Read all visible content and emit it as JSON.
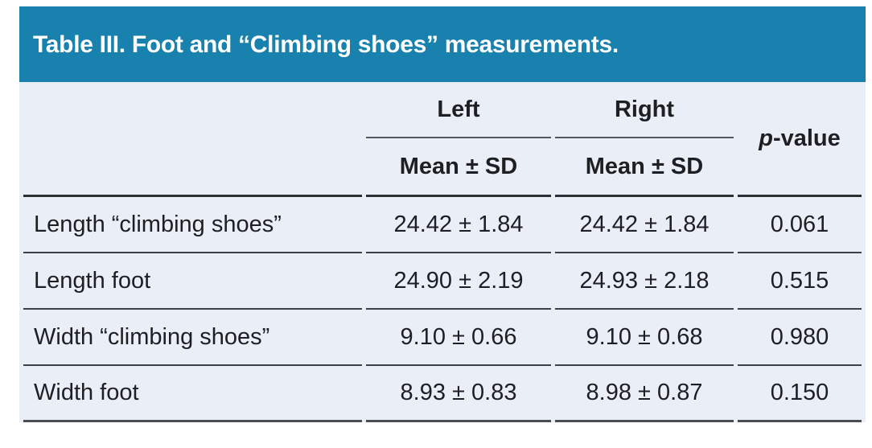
{
  "title": "Table III. Foot and “Climbing shoes” measurements.",
  "header": {
    "group_left": "Left",
    "group_right": "Right",
    "sub_left": "Mean ± SD",
    "sub_right": "Mean ± SD",
    "p_italic": "p",
    "p_rest": "-value"
  },
  "rows": [
    {
      "label": "Length “climbing shoes”",
      "left": "24.42 ± 1.84",
      "right": "24.42 ± 1.84",
      "p": "0.061"
    },
    {
      "label": "Length foot",
      "left": "24.90 ± 2.19",
      "right": "24.93 ± 2.18",
      "p": "0.515"
    },
    {
      "label": "Width “climbing shoes”",
      "left": "9.10 ± 0.66",
      "right": "9.10 ± 0.68",
      "p": "0.980"
    },
    {
      "label": "Width foot",
      "left": "8.93 ± 0.83",
      "right": "8.98 ± 0.87",
      "p": "0.150"
    }
  ],
  "colors": {
    "title_bar_bg": "#1881AE",
    "title_text": "#FFFFFF",
    "table_bg": "#EAEEF7",
    "body_text": "#1E1F22",
    "rule_dark": "#2E2F32",
    "rule_mid": "#3F4044",
    "rule_underline": "#55575C"
  },
  "chart_data": {
    "type": "table",
    "title": "Table III. Foot and “Climbing shoes” measurements.",
    "columns": [
      "",
      "Left Mean ± SD",
      "Right Mean ± SD",
      "p-value"
    ],
    "rows": [
      [
        "Length “climbing shoes”",
        "24.42 ± 1.84",
        "24.42 ± 1.84",
        "0.061"
      ],
      [
        "Length foot",
        "24.90 ± 2.19",
        "24.93 ± 2.18",
        "0.515"
      ],
      [
        "Width “climbing shoes”",
        "9.10 ± 0.66",
        "9.10 ± 0.68",
        "0.980"
      ],
      [
        "Width foot",
        "8.93 ± 0.83",
        "8.98 ± 0.87",
        "0.150"
      ]
    ]
  }
}
